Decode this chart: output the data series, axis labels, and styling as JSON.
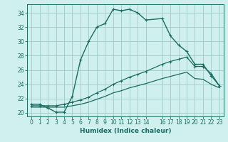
{
  "xlabel": "Humidex (Indice chaleur)",
  "bg_color": "#cff0ee",
  "grid_color": "#a0ccc8",
  "line_color": "#1a6b60",
  "ylim": [
    19.5,
    35.2
  ],
  "xlim": [
    -0.5,
    23.5
  ],
  "yticks": [
    20,
    22,
    24,
    26,
    28,
    30,
    32,
    34
  ],
  "xticks": [
    0,
    1,
    2,
    3,
    4,
    5,
    6,
    7,
    8,
    9,
    10,
    11,
    12,
    13,
    14,
    16,
    17,
    18,
    19,
    20,
    21,
    22,
    23
  ],
  "line1_x": [
    0,
    1,
    2,
    3,
    4,
    5,
    6,
    7,
    8,
    9,
    10,
    11,
    12,
    13,
    14,
    16,
    17,
    18,
    19,
    20,
    21,
    22,
    23
  ],
  "line1_y": [
    21.2,
    21.2,
    20.7,
    20.1,
    20.1,
    22.3,
    27.4,
    30.0,
    32.0,
    32.5,
    34.5,
    34.3,
    34.5,
    34.0,
    33.0,
    33.2,
    30.8,
    29.5,
    28.6,
    26.8,
    26.8,
    25.2,
    23.8
  ],
  "line2_x": [
    0,
    1,
    2,
    3,
    4,
    5,
    6,
    7,
    8,
    9,
    10,
    11,
    12,
    13,
    14,
    16,
    17,
    18,
    19,
    20,
    21,
    22,
    23
  ],
  "line2_y": [
    21.0,
    21.0,
    21.0,
    21.0,
    21.2,
    21.5,
    21.8,
    22.2,
    22.8,
    23.3,
    24.0,
    24.5,
    25.0,
    25.4,
    25.8,
    26.8,
    27.2,
    27.5,
    27.8,
    26.5,
    26.5,
    25.5,
    23.8
  ],
  "line3_x": [
    0,
    1,
    2,
    3,
    4,
    5,
    6,
    7,
    8,
    9,
    10,
    11,
    12,
    13,
    14,
    16,
    17,
    18,
    19,
    20,
    21,
    22,
    23
  ],
  "line3_y": [
    20.8,
    20.8,
    20.8,
    20.8,
    20.8,
    21.0,
    21.2,
    21.5,
    21.9,
    22.3,
    22.8,
    23.1,
    23.5,
    23.8,
    24.1,
    24.8,
    25.1,
    25.4,
    25.7,
    24.8,
    24.7,
    24.0,
    23.5
  ]
}
